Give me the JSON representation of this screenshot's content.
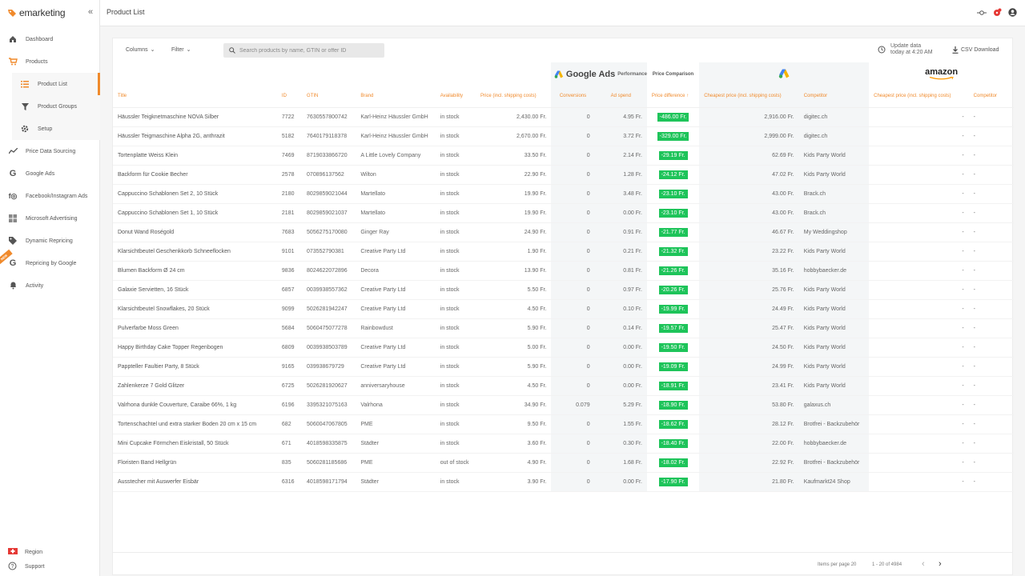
{
  "app": {
    "brand": "emarketing",
    "collapse_icon": "double-chevron-left-icon"
  },
  "sidebar": {
    "items": [
      {
        "label": "Dashboard",
        "icon": "home-icon"
      },
      {
        "label": "Products",
        "icon": "cart-icon"
      },
      {
        "label": "Product List",
        "icon": "list-icon"
      },
      {
        "label": "Product Groups",
        "icon": "filter-icon"
      },
      {
        "label": "Setup",
        "icon": "gear-icon"
      },
      {
        "label": "Price Data Sourcing",
        "icon": "trend-icon"
      },
      {
        "label": "Google Ads",
        "icon": "google-icon"
      },
      {
        "label": "Facebook/Instagram Ads",
        "icon": "facebook-instagram-icon"
      },
      {
        "label": "Microsoft Advertising",
        "icon": "microsoft-icon"
      },
      {
        "label": "Dynamic Repricing",
        "icon": "tag-icon"
      },
      {
        "label": "Repricing by Google",
        "icon": "google-icon"
      },
      {
        "label": "Activity",
        "icon": "bell-icon"
      }
    ],
    "new_badge": "NEW",
    "bottom": [
      {
        "label": "Region",
        "icon": "swiss-flag-icon"
      },
      {
        "label": "Support",
        "icon": "help-icon"
      }
    ]
  },
  "header": {
    "title": "Product List"
  },
  "toolbar": {
    "columns_label": "Columns",
    "filter_label": "Filter",
    "search_placeholder": "Search products by name, GTIN or offer ID",
    "update_line1": "Update data",
    "update_line2": "today at 4:20 AM",
    "csv_label": "CSV Download"
  },
  "groups": {
    "google_ads": "Google Ads",
    "performance": "Performance",
    "price_comparison": "Price Comparison",
    "amazon": "amazon"
  },
  "columns": [
    "Title",
    "ID",
    "GTIN",
    "Brand",
    "Availability",
    "Price (incl. shipping costs)",
    "Conversions",
    "Ad spend",
    "Price difference",
    "Cheapest price (incl. shipping costs)",
    "Competitor",
    "Cheapest price (incl. shipping costs)",
    "Competitor"
  ],
  "rows": [
    [
      "Häussler Teigknetmaschine NOVA Silber",
      "7722",
      "7630557800742",
      "Karl-Heinz Häussler GmbH",
      "in stock",
      "2,430.00 Fr.",
      "0",
      "4.95 Fr.",
      "-486.00 Fr.",
      "2,916.00 Fr.",
      "digitec.ch",
      "-",
      "-"
    ],
    [
      "Häussler Teigmaschine Alpha 2G, anthrazit",
      "5182",
      "7640179118378",
      "Karl-Heinz Häussler GmbH",
      "in stock",
      "2,670.00 Fr.",
      "0",
      "3.72 Fr.",
      "-329.00 Fr.",
      "2,999.00 Fr.",
      "digitec.ch",
      "-",
      "-"
    ],
    [
      "Tortenplatte Weiss Klein",
      "7469",
      "8719033866720",
      "A Little Lovely Company",
      "in stock",
      "33.50 Fr.",
      "0",
      "2.14 Fr.",
      "-29.19 Fr.",
      "62.69 Fr.",
      "Kids Party World",
      "-",
      "-"
    ],
    [
      "Backform für Cookie Becher",
      "2578",
      "070896137562",
      "Wilton",
      "in stock",
      "22.90 Fr.",
      "0",
      "1.28 Fr.",
      "-24.12 Fr.",
      "47.02 Fr.",
      "Kids Party World",
      "-",
      "-"
    ],
    [
      "Cappuccino Schablonen Set 2, 10 Stück",
      "2180",
      "8029859021044",
      "Martellato",
      "in stock",
      "19.90 Fr.",
      "0",
      "3.48 Fr.",
      "-23.10 Fr.",
      "43.00 Fr.",
      "Brack.ch",
      "-",
      "-"
    ],
    [
      "Cappuccino Schablonen Set 1, 10 Stück",
      "2181",
      "8029859021037",
      "Martellato",
      "in stock",
      "19.90 Fr.",
      "0",
      "0.00 Fr.",
      "-23.10 Fr.",
      "43.00 Fr.",
      "Brack.ch",
      "-",
      "-"
    ],
    [
      "Donut Wand Roségold",
      "7683",
      "5056275170080",
      "Ginger Ray",
      "in stock",
      "24.90 Fr.",
      "0",
      "0.91 Fr.",
      "-21.77 Fr.",
      "46.67 Fr.",
      "My Weddingshop",
      "-",
      "-"
    ],
    [
      "Klarsichtbeutel Geschenkkorb Schneeflocken",
      "9101",
      "073552790381",
      "Creative Party Ltd",
      "in stock",
      "1.90 Fr.",
      "0",
      "0.21 Fr.",
      "-21.32 Fr.",
      "23.22 Fr.",
      "Kids Party World",
      "-",
      "-"
    ],
    [
      "Blumen Backform Ø 24 cm",
      "9836",
      "8024622072896",
      "Decora",
      "in stock",
      "13.90 Fr.",
      "0",
      "0.81 Fr.",
      "-21.26 Fr.",
      "35.16 Fr.",
      "hobbybaecker.de",
      "-",
      "-"
    ],
    [
      "Galaxie Servietten, 16 Stück",
      "6857",
      "0039938557362",
      "Creative Party Ltd",
      "in stock",
      "5.50 Fr.",
      "0",
      "0.97 Fr.",
      "-20.26 Fr.",
      "25.76 Fr.",
      "Kids Party World",
      "-",
      "-"
    ],
    [
      "Klarsichtbeutel Snowflakes, 20 Stück",
      "9099",
      "5026281942247",
      "Creative Party Ltd",
      "in stock",
      "4.50 Fr.",
      "0",
      "0.10 Fr.",
      "-19.99 Fr.",
      "24.49 Fr.",
      "Kids Party World",
      "-",
      "-"
    ],
    [
      "Pulverfarbe Moss Green",
      "5684",
      "5060475077278",
      "Rainbowdust",
      "in stock",
      "5.90 Fr.",
      "0",
      "0.14 Fr.",
      "-19.57 Fr.",
      "25.47 Fr.",
      "Kids Party World",
      "-",
      "-"
    ],
    [
      "Happy Birthday Cake Topper Regenbogen",
      "6809",
      "0039938503789",
      "Creative Party Ltd",
      "in stock",
      "5.00 Fr.",
      "0",
      "0.00 Fr.",
      "-19.50 Fr.",
      "24.50 Fr.",
      "Kids Party World",
      "-",
      "-"
    ],
    [
      "Pappteller Faultier Party, 8 Stück",
      "9165",
      "039938679729",
      "Creative Party Ltd",
      "in stock",
      "5.90 Fr.",
      "0",
      "0.00 Fr.",
      "-19.09 Fr.",
      "24.99 Fr.",
      "Kids Party World",
      "-",
      "-"
    ],
    [
      "Zahlenkerze 7 Gold Glitzer",
      "6725",
      "5026281920627",
      "anniversaryhouse",
      "in stock",
      "4.50 Fr.",
      "0",
      "0.00 Fr.",
      "-18.91 Fr.",
      "23.41 Fr.",
      "Kids Party World",
      "-",
      "-"
    ],
    [
      "Valrhona dunkle Couverture, Caraibe 66%, 1 kg",
      "6196",
      "3395321075163",
      "Valrhona",
      "in stock",
      "34.90 Fr.",
      "0.079",
      "5.29 Fr.",
      "-18.90 Fr.",
      "53.80 Fr.",
      "galaxus.ch",
      "-",
      "-"
    ],
    [
      "Tortenschachtel und extra starker Boden 20 cm x 15 cm",
      "682",
      "5060047067805",
      "PME",
      "in stock",
      "9.50 Fr.",
      "0",
      "1.55 Fr.",
      "-18.62 Fr.",
      "28.12 Fr.",
      "Brotfrei - Backzubehör",
      "-",
      "-"
    ],
    [
      "Mini Cupcake Förmchen Eiskristall, 50 Stück",
      "671",
      "4018598335875",
      "Städter",
      "in stock",
      "3.60 Fr.",
      "0",
      "0.30 Fr.",
      "-18.40 Fr.",
      "22.00 Fr.",
      "hobbybaecker.de",
      "-",
      "-"
    ],
    [
      "Floristen Band Hellgrün",
      "835",
      "5060281185686",
      "PME",
      "out of stock",
      "4.90 Fr.",
      "0",
      "1.68 Fr.",
      "-18.02 Fr.",
      "22.92 Fr.",
      "Brotfrei - Backzubehör",
      "-",
      "-"
    ],
    [
      "Ausstecher mit Auswerfer Eisbär",
      "6316",
      "4018598171794",
      "Städter",
      "in stock",
      "3.90 Fr.",
      "0",
      "0.00 Fr.",
      "-17.90 Fr.",
      "21.80 Fr.",
      "Kaufmarkt24 Shop",
      "-",
      "-"
    ]
  ],
  "footer": {
    "items_per_page": "Items per page 20",
    "range": "1 - 20 of 4984"
  },
  "colors": {
    "accent": "#f08a2c",
    "positive": "#1ec45a"
  }
}
